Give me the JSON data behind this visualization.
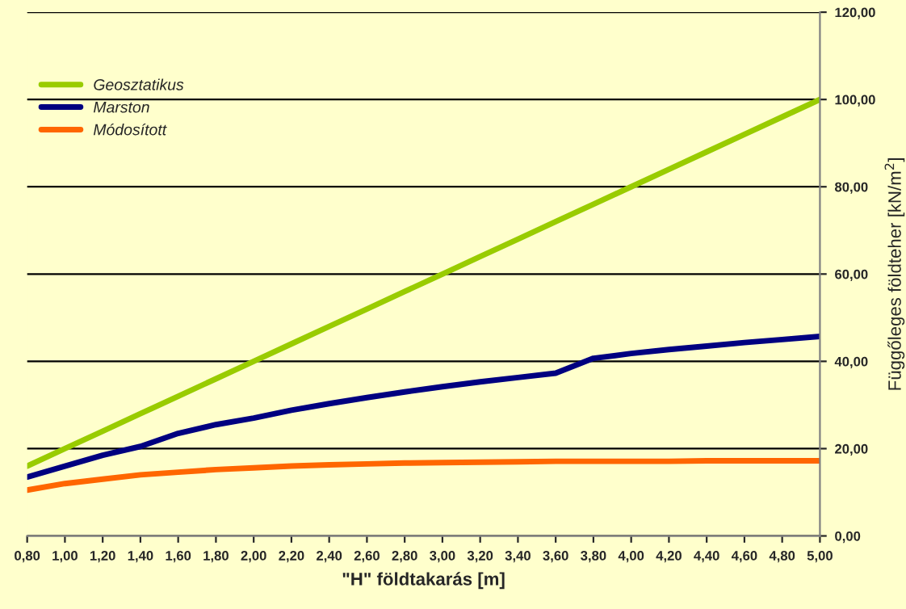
{
  "chart_data": {
    "type": "line",
    "xlabel": "\"H\" földtakarás [m]",
    "ylabel": "Függőleges földteher [kN/m$^{2}$]",
    "x": [
      0.8,
      1.0,
      1.2,
      1.4,
      1.6,
      1.8,
      2.0,
      2.2,
      2.4,
      2.6,
      2.8,
      3.0,
      3.2,
      3.4,
      3.6,
      3.8,
      4.0,
      4.2,
      4.4,
      4.6,
      4.8,
      5.0
    ],
    "series": [
      {
        "name": "Geosztatikus",
        "color": "#99cc00",
        "values": [
          16,
          20,
          24,
          28,
          32,
          36,
          40,
          44,
          48,
          52,
          56,
          60,
          64,
          68,
          72,
          76,
          80,
          84,
          88,
          92,
          96,
          100
        ]
      },
      {
        "name": "Marston",
        "color": "#000080",
        "values": [
          13.5,
          16,
          18.5,
          20.5,
          23.5,
          25.5,
          27,
          28.8,
          30.3,
          31.7,
          33,
          34.2,
          35.3,
          36.3,
          37.3,
          40.7,
          41.8,
          42.7,
          43.5,
          44.3,
          45,
          45.7
        ]
      },
      {
        "name": "Módosított",
        "color": "#ff6600",
        "values": [
          10.5,
          12,
          13,
          14,
          14.6,
          15.2,
          15.6,
          16,
          16.3,
          16.5,
          16.7,
          16.8,
          16.9,
          17,
          17.1,
          17.1,
          17.1,
          17.1,
          17.2,
          17.2,
          17.2,
          17.2
        ]
      }
    ],
    "xlim": [
      0.8,
      5.0
    ],
    "xticks": [
      {
        "value": 0.8,
        "label": "0,80"
      },
      {
        "value": 1.0,
        "label": "1,00"
      },
      {
        "value": 1.2,
        "label": "1,20"
      },
      {
        "value": 1.4,
        "label": "1,40"
      },
      {
        "value": 1.6,
        "label": "1,60"
      },
      {
        "value": 1.8,
        "label": "1,80"
      },
      {
        "value": 2.0,
        "label": "2,00"
      },
      {
        "value": 2.2,
        "label": "2,20"
      },
      {
        "value": 2.4,
        "label": "2,40"
      },
      {
        "value": 2.6,
        "label": "2,60"
      },
      {
        "value": 2.8,
        "label": "2,80"
      },
      {
        "value": 3.0,
        "label": "3,00"
      },
      {
        "value": 3.2,
        "label": "3,20"
      },
      {
        "value": 3.4,
        "label": "3,40"
      },
      {
        "value": 3.6,
        "label": "3,60"
      },
      {
        "value": 3.8,
        "label": "3,80"
      },
      {
        "value": 4.0,
        "label": "4,00"
      },
      {
        "value": 4.2,
        "label": "4,20"
      },
      {
        "value": 4.4,
        "label": "4,40"
      },
      {
        "value": 4.6,
        "label": "4,60"
      },
      {
        "value": 4.8,
        "label": "4,80"
      },
      {
        "value": 5.0,
        "label": "5,00"
      }
    ],
    "ylim": [
      0,
      120
    ],
    "yticks": [
      {
        "value": 0,
        "label": "0,00"
      },
      {
        "value": 20,
        "label": "20,00"
      },
      {
        "value": 40,
        "label": "40,00"
      },
      {
        "value": 60,
        "label": "60,00"
      },
      {
        "value": 80,
        "label": "80,00"
      },
      {
        "value": 100,
        "label": "100,00"
      },
      {
        "value": 120,
        "label": "120,00"
      }
    ],
    "grid": "y",
    "legend": "top left",
    "marker": "none",
    "line_style": "solid"
  }
}
